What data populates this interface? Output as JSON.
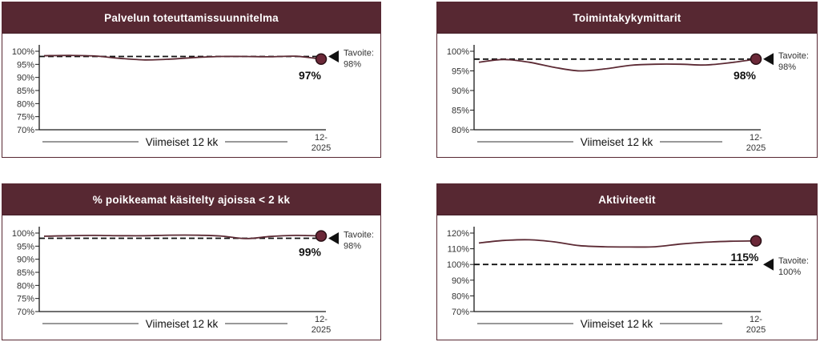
{
  "colors": {
    "accent": "#572832",
    "series_line": "#5c2a34",
    "marker_fill": "#6b2838",
    "marker_stroke": "#2a1016",
    "target_line": "#111111",
    "axis": "#1a1a1a",
    "tick_text": "#333333",
    "label_text": "#111111"
  },
  "chart_data": [
    {
      "type": "line",
      "title": "Palvelun toteuttamissuunnitelma",
      "x": [
        1,
        2,
        3,
        4,
        5,
        6,
        7,
        8,
        9,
        10,
        11,
        12
      ],
      "values": [
        98.3,
        98.4,
        98.2,
        97.3,
        96.7,
        97.0,
        97.6,
        98.0,
        98.0,
        97.9,
        98.1,
        97.0
      ],
      "target": 98,
      "ylim": [
        70,
        100
      ],
      "ytick_labels": [
        "100%",
        "95%",
        "90%",
        "85%",
        "80%",
        "75%",
        "70%"
      ],
      "xlabel": "Viimeiset 12 kk",
      "last_x_tick": [
        "12-",
        "2025"
      ],
      "end_value_label": "97%",
      "target_annotation": [
        "Tavoite:",
        "98%"
      ],
      "grid": false,
      "legend": "none"
    },
    {
      "type": "line",
      "title": "Toimintakykymittarit",
      "x": [
        1,
        2,
        3,
        4,
        5,
        6,
        7,
        8,
        9,
        10,
        11,
        12
      ],
      "values": [
        97.2,
        97.9,
        97.2,
        95.9,
        95.0,
        95.5,
        96.4,
        96.7,
        96.7,
        96.5,
        97.1,
        98.0
      ],
      "target": 98,
      "ylim": [
        80,
        100
      ],
      "ytick_labels": [
        "100%",
        "95%",
        "90%",
        "85%",
        "80%"
      ],
      "xlabel": "Viimeiset 12 kk",
      "last_x_tick": [
        "12-",
        "2025"
      ],
      "end_value_label": "98%",
      "target_annotation": [
        "Tavoite:",
        "98%"
      ],
      "grid": false,
      "legend": "none"
    },
    {
      "type": "line",
      "title": "% poikkeamat käsitelty ajoissa < 2 kk",
      "x": [
        1,
        2,
        3,
        4,
        5,
        6,
        7,
        8,
        9,
        10,
        11,
        12
      ],
      "values": [
        98.8,
        99.0,
        99.1,
        99.0,
        99.0,
        99.2,
        99.2,
        98.9,
        97.9,
        98.7,
        99.1,
        98.9
      ],
      "target": 98,
      "ylim": [
        70,
        100
      ],
      "ytick_labels": [
        "100%",
        "95%",
        "90%",
        "85%",
        "80%",
        "75%",
        "70%"
      ],
      "xlabel": "Viimeiset 12 kk",
      "last_x_tick": [
        "12-",
        "2025"
      ],
      "end_value_label": "99%",
      "target_annotation": [
        "Tavoite:",
        "98%"
      ],
      "grid": false,
      "legend": "none"
    },
    {
      "type": "line",
      "title": "Aktiviteetit",
      "x": [
        1,
        2,
        3,
        4,
        5,
        6,
        7,
        8,
        9,
        10,
        11,
        12
      ],
      "values": [
        113.7,
        115.3,
        115.7,
        114.4,
        112.0,
        111.3,
        111.1,
        111.3,
        113.0,
        114.2,
        114.8,
        115.0
      ],
      "target": 100,
      "ylim": [
        70,
        120
      ],
      "ytick_labels": [
        "120%",
        "110%",
        "100%",
        "90%",
        "80%",
        "70%"
      ],
      "xlabel": "Viimeiset 12 kk",
      "last_x_tick": [
        "12-",
        "2025"
      ],
      "end_value_label": "115%",
      "target_annotation": [
        "Tavoite:",
        "100%"
      ],
      "grid": false,
      "legend": "none"
    }
  ]
}
